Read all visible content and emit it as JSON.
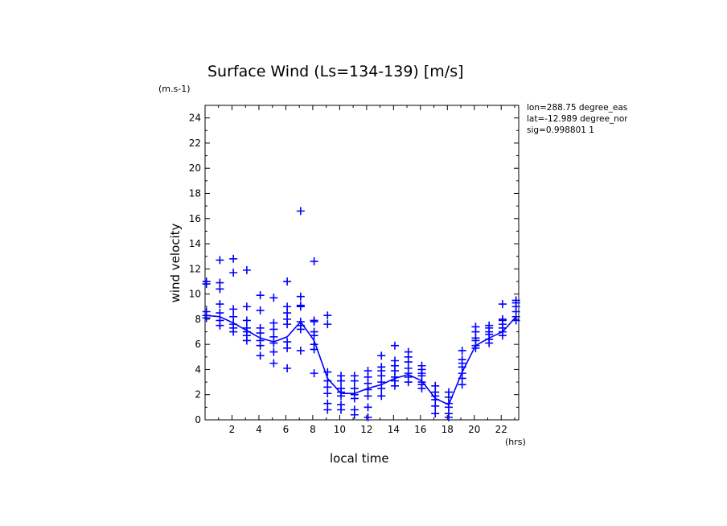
{
  "chart_data": {
    "type": "scatter",
    "title": "Surface Wind  (Ls=134-139) [m/s]",
    "xlabel": "local time",
    "ylabel": "wind velocity",
    "x_unit": "(hrs)",
    "y_unit": "(m.s-1)",
    "xlim": [
      0,
      23.3
    ],
    "ylim": [
      0,
      25
    ],
    "x_ticks": [
      2,
      4,
      6,
      8,
      10,
      12,
      14,
      16,
      18,
      20,
      22
    ],
    "y_ticks": [
      0,
      2,
      4,
      6,
      8,
      10,
      12,
      14,
      16,
      18,
      20,
      22,
      24
    ],
    "grid": false,
    "color": "#0000ff",
    "info": [
      "lon=288.75 degree_east",
      "lat=-12.989 degree_north",
      "sig=0.998801 1"
    ],
    "series": [
      {
        "style": "markers",
        "marker": "plus",
        "points": [
          [
            0.1,
            8.1
          ],
          [
            0.1,
            8.3
          ],
          [
            0.1,
            8.6
          ],
          [
            0.1,
            10.8
          ],
          [
            0.1,
            11.0
          ],
          [
            1.1,
            7.5
          ],
          [
            1.1,
            7.9
          ],
          [
            1.1,
            8.5
          ],
          [
            1.1,
            9.2
          ],
          [
            1.1,
            10.4
          ],
          [
            1.1,
            10.9
          ],
          [
            1.1,
            12.7
          ],
          [
            2.1,
            7.0
          ],
          [
            2.1,
            7.3
          ],
          [
            2.1,
            7.6
          ],
          [
            2.1,
            8.2
          ],
          [
            2.1,
            8.8
          ],
          [
            2.1,
            11.7
          ],
          [
            2.1,
            12.8
          ],
          [
            3.1,
            6.3
          ],
          [
            3.1,
            6.7
          ],
          [
            3.1,
            7.0
          ],
          [
            3.1,
            7.3
          ],
          [
            3.1,
            7.9
          ],
          [
            3.1,
            9.0
          ],
          [
            3.1,
            11.9
          ],
          [
            4.1,
            5.1
          ],
          [
            4.1,
            5.9
          ],
          [
            4.1,
            6.3
          ],
          [
            4.1,
            6.9
          ],
          [
            4.1,
            7.3
          ],
          [
            4.1,
            8.7
          ],
          [
            4.1,
            9.9
          ],
          [
            5.1,
            4.5
          ],
          [
            5.1,
            5.4
          ],
          [
            5.1,
            6.1
          ],
          [
            5.1,
            6.6
          ],
          [
            5.1,
            7.2
          ],
          [
            5.1,
            7.7
          ],
          [
            5.1,
            9.7
          ],
          [
            6.1,
            4.1
          ],
          [
            6.1,
            5.7
          ],
          [
            6.1,
            6.2
          ],
          [
            6.1,
            7.6
          ],
          [
            6.1,
            8.0
          ],
          [
            6.1,
            8.5
          ],
          [
            6.1,
            9.0
          ],
          [
            6.1,
            11.0
          ],
          [
            7.1,
            5.5
          ],
          [
            7.1,
            7.2
          ],
          [
            7.1,
            7.5
          ],
          [
            7.1,
            7.8
          ],
          [
            7.1,
            9.0
          ],
          [
            7.1,
            9.1
          ],
          [
            7.1,
            9.8
          ],
          [
            7.1,
            16.6
          ],
          [
            8.1,
            3.7
          ],
          [
            8.1,
            5.6
          ],
          [
            8.1,
            6.0
          ],
          [
            8.1,
            6.7
          ],
          [
            8.1,
            7.0
          ],
          [
            8.1,
            7.8
          ],
          [
            8.1,
            7.9
          ],
          [
            8.1,
            12.6
          ],
          [
            9.1,
            0.8
          ],
          [
            9.1,
            1.3
          ],
          [
            9.1,
            2.1
          ],
          [
            9.1,
            2.6
          ],
          [
            9.1,
            3.1
          ],
          [
            9.1,
            3.8
          ],
          [
            9.1,
            7.6
          ],
          [
            9.1,
            8.3
          ],
          [
            10.1,
            0.8
          ],
          [
            10.1,
            1.2
          ],
          [
            10.1,
            1.9
          ],
          [
            10.1,
            2.2
          ],
          [
            10.1,
            2.5
          ],
          [
            10.1,
            3.1
          ],
          [
            10.1,
            3.5
          ],
          [
            11.1,
            0.4
          ],
          [
            11.1,
            0.8
          ],
          [
            11.1,
            1.7
          ],
          [
            11.1,
            2.0
          ],
          [
            11.1,
            2.5
          ],
          [
            11.1,
            3.1
          ],
          [
            11.1,
            3.5
          ],
          [
            12.1,
            0.2
          ],
          [
            12.1,
            1.0
          ],
          [
            12.1,
            1.9
          ],
          [
            12.1,
            2.4
          ],
          [
            12.1,
            2.9
          ],
          [
            12.1,
            3.4
          ],
          [
            12.1,
            3.9
          ],
          [
            13.1,
            1.9
          ],
          [
            13.1,
            2.5
          ],
          [
            13.1,
            3.0
          ],
          [
            13.1,
            3.5
          ],
          [
            13.1,
            3.9
          ],
          [
            13.1,
            4.2
          ],
          [
            13.1,
            5.1
          ],
          [
            14.1,
            2.7
          ],
          [
            14.1,
            3.1
          ],
          [
            14.1,
            3.4
          ],
          [
            14.1,
            3.9
          ],
          [
            14.1,
            4.3
          ],
          [
            14.1,
            4.7
          ],
          [
            14.1,
            5.9
          ],
          [
            15.1,
            3.0
          ],
          [
            15.1,
            3.4
          ],
          [
            15.1,
            3.7
          ],
          [
            15.1,
            4.1
          ],
          [
            15.1,
            4.6
          ],
          [
            15.1,
            5.0
          ],
          [
            15.1,
            5.4
          ],
          [
            16.1,
            2.5
          ],
          [
            16.1,
            2.8
          ],
          [
            16.1,
            3.0
          ],
          [
            16.1,
            3.5
          ],
          [
            16.1,
            3.7
          ],
          [
            16.1,
            4.0
          ],
          [
            16.1,
            4.3
          ],
          [
            17.1,
            0.5
          ],
          [
            17.1,
            1.1
          ],
          [
            17.1,
            1.6
          ],
          [
            17.1,
            1.9
          ],
          [
            17.1,
            2.2
          ],
          [
            17.1,
            2.7
          ],
          [
            18.1,
            0.2
          ],
          [
            18.1,
            0.5
          ],
          [
            18.1,
            1.0
          ],
          [
            18.1,
            1.3
          ],
          [
            18.1,
            1.8
          ],
          [
            18.1,
            2.2
          ],
          [
            19.1,
            2.8
          ],
          [
            19.1,
            3.3
          ],
          [
            19.1,
            3.7
          ],
          [
            19.1,
            4.2
          ],
          [
            19.1,
            4.5
          ],
          [
            19.1,
            4.8
          ],
          [
            19.1,
            5.5
          ],
          [
            20.1,
            5.7
          ],
          [
            20.1,
            5.9
          ],
          [
            20.1,
            6.3
          ],
          [
            20.1,
            6.5
          ],
          [
            20.1,
            7.0
          ],
          [
            20.1,
            7.4
          ],
          [
            21.1,
            6.1
          ],
          [
            21.1,
            6.4
          ],
          [
            21.1,
            6.8
          ],
          [
            21.1,
            7.0
          ],
          [
            21.1,
            7.3
          ],
          [
            21.1,
            7.5
          ],
          [
            22.1,
            6.7
          ],
          [
            22.1,
            7.0
          ],
          [
            22.1,
            7.3
          ],
          [
            22.1,
            7.6
          ],
          [
            22.1,
            7.9
          ],
          [
            22.1,
            8.0
          ],
          [
            22.1,
            9.2
          ],
          [
            23.1,
            7.9
          ],
          [
            23.1,
            8.2
          ],
          [
            23.1,
            8.6
          ],
          [
            23.1,
            9.0
          ],
          [
            23.1,
            9.3
          ],
          [
            23.1,
            9.5
          ]
        ]
      },
      {
        "style": "line",
        "x": [
          0.1,
          1.1,
          2.1,
          3.1,
          4.1,
          5.1,
          6.1,
          7.1,
          8.1,
          9.1,
          10.1,
          11.1,
          12.1,
          13.1,
          14.1,
          15.1,
          16.1,
          17.1,
          18.1,
          19.1,
          20.1,
          21.1,
          22.1,
          23.1
        ],
        "y": [
          8.3,
          8.2,
          7.7,
          7.1,
          6.5,
          6.2,
          6.6,
          7.8,
          6.3,
          3.3,
          2.1,
          2.1,
          2.5,
          2.8,
          3.3,
          3.6,
          3.1,
          1.7,
          1.2,
          3.8,
          5.9,
          6.5,
          7.0,
          8.2
        ]
      }
    ]
  }
}
